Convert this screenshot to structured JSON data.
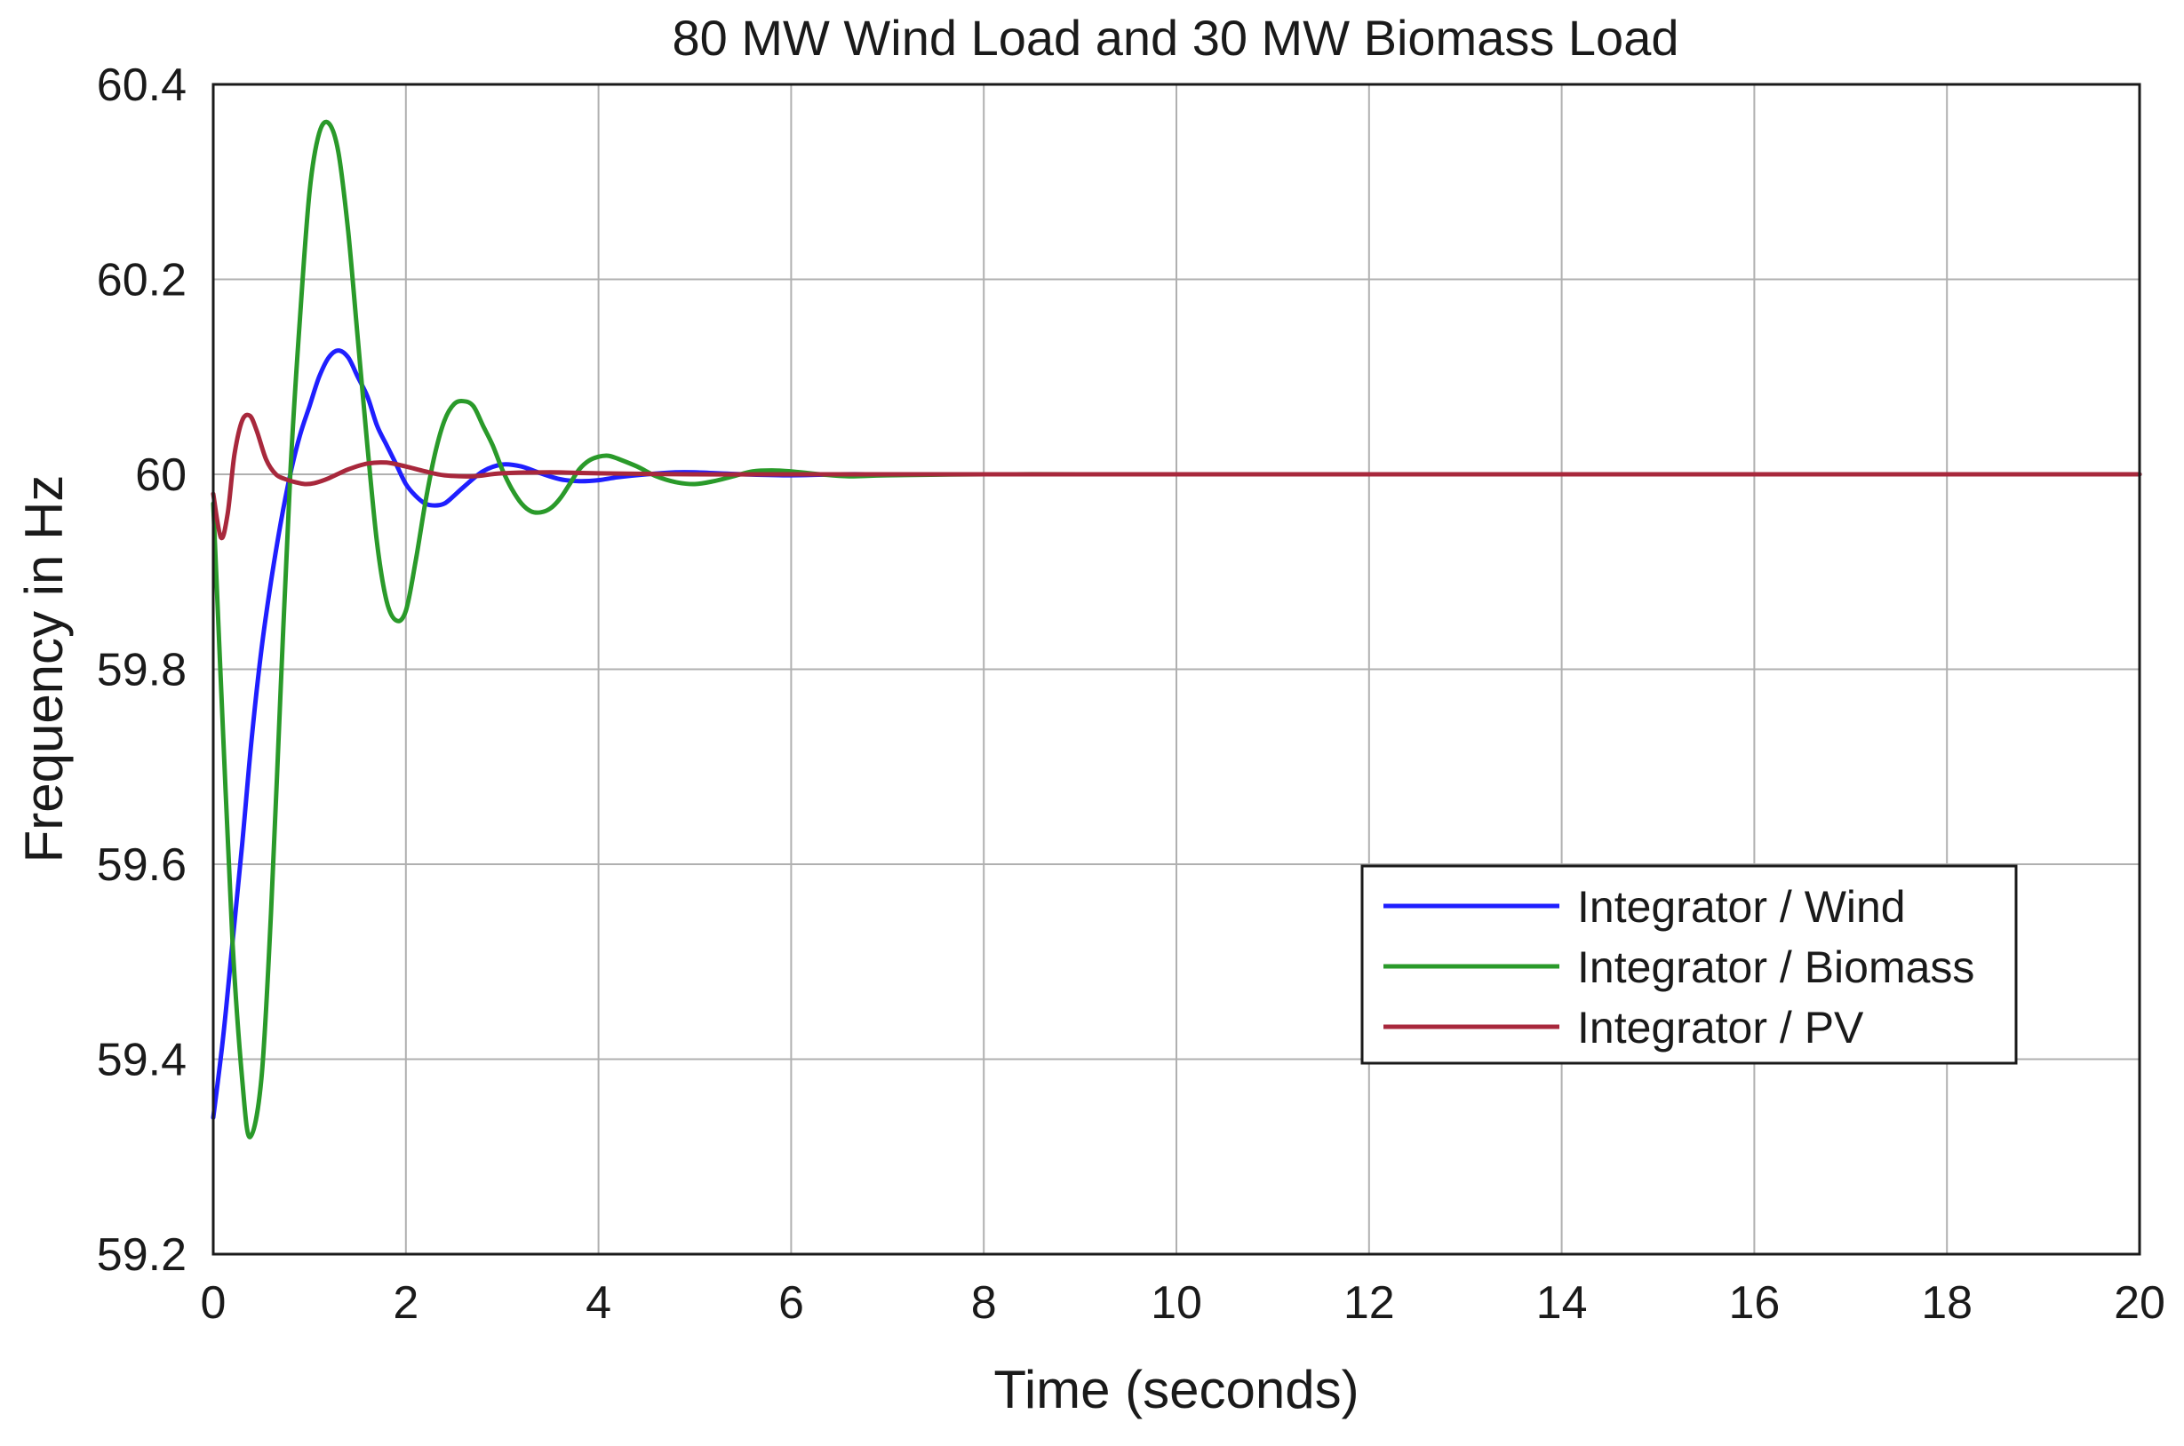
{
  "chart_data": {
    "type": "line",
    "title": "80 MW Wind Load and 30 MW Biomass Load",
    "xlabel": "Time (seconds)",
    "ylabel": "Frequency in Hz",
    "xlim": [
      0,
      20
    ],
    "ylim": [
      59.2,
      60.4
    ],
    "xticks": [
      0,
      2,
      4,
      6,
      8,
      10,
      12,
      14,
      16,
      18,
      20
    ],
    "yticks": [
      59.2,
      59.4,
      59.6,
      59.8,
      60,
      60.2,
      60.4
    ],
    "xtick_labels": [
      "0",
      "2",
      "4",
      "6",
      "8",
      "10",
      "12",
      "14",
      "16",
      "18",
      "20"
    ],
    "ytick_labels": [
      "59.2",
      "59.4",
      "59.6",
      "59.8",
      "60",
      "60.2",
      "60.4"
    ],
    "grid": true,
    "legend_position": "bottom-right",
    "series": [
      {
        "name": "Integrator / Wind",
        "color": "#1f1fff",
        "x": [
          0,
          0.1,
          0.2,
          0.3,
          0.4,
          0.5,
          0.6,
          0.7,
          0.8,
          0.9,
          1.0,
          1.1,
          1.2,
          1.3,
          1.4,
          1.5,
          1.6,
          1.7,
          1.8,
          1.9,
          2.0,
          2.1,
          2.2,
          2.3,
          2.4,
          2.5,
          2.6,
          2.8,
          3.0,
          3.2,
          3.4,
          3.6,
          3.8,
          4.0,
          4.2,
          4.5,
          4.8,
          5.0,
          5.5,
          6.0,
          6.5,
          7.0,
          8.0,
          9.0,
          10.0,
          11.0,
          12.0,
          14.0,
          16.0,
          18.0,
          20.0
        ],
        "y": [
          59.34,
          59.42,
          59.52,
          59.62,
          59.73,
          59.82,
          59.89,
          59.95,
          60.0,
          60.04,
          60.07,
          60.1,
          60.12,
          60.127,
          60.12,
          60.1,
          60.08,
          60.05,
          60.03,
          60.01,
          59.99,
          59.978,
          59.97,
          59.968,
          59.97,
          59.978,
          59.987,
          60.003,
          60.01,
          60.008,
          60.001,
          59.995,
          59.993,
          59.994,
          59.997,
          60.0,
          60.002,
          60.002,
          60.0,
          59.999,
          60.0,
          60.0,
          60.0,
          60.0,
          60.0,
          60.0,
          60.0,
          60.0,
          60.0,
          60.0,
          60.0
        ]
      },
      {
        "name": "Integrator / Biomass",
        "color": "#2a9a2a",
        "x": [
          0,
          0.1,
          0.2,
          0.3,
          0.38,
          0.5,
          0.6,
          0.7,
          0.8,
          0.9,
          1.0,
          1.1,
          1.2,
          1.3,
          1.4,
          1.5,
          1.6,
          1.7,
          1.8,
          1.9,
          2.0,
          2.1,
          2.2,
          2.3,
          2.4,
          2.5,
          2.6,
          2.7,
          2.8,
          2.9,
          3.0,
          3.1,
          3.2,
          3.3,
          3.4,
          3.5,
          3.6,
          3.7,
          3.8,
          3.9,
          4.0,
          4.1,
          4.2,
          4.4,
          4.6,
          4.8,
          5.0,
          5.2,
          5.4,
          5.6,
          5.8,
          6.0,
          6.3,
          6.6,
          7.0,
          8.0,
          9.0,
          10.0,
          12.0,
          14.0,
          16.0,
          18.0,
          20.0
        ],
        "y": [
          59.97,
          59.74,
          59.52,
          59.38,
          59.32,
          59.38,
          59.55,
          59.78,
          60.0,
          60.16,
          60.29,
          60.35,
          60.36,
          60.33,
          60.25,
          60.14,
          60.03,
          59.93,
          59.87,
          59.85,
          59.86,
          59.91,
          59.97,
          60.02,
          60.055,
          60.072,
          60.075,
          60.07,
          60.05,
          60.03,
          60.005,
          59.985,
          59.97,
          59.962,
          59.961,
          59.965,
          59.975,
          59.99,
          60.005,
          60.014,
          60.018,
          60.019,
          60.016,
          60.008,
          59.998,
          59.992,
          59.99,
          59.993,
          59.998,
          60.003,
          60.004,
          60.003,
          60.0,
          59.998,
          59.999,
          60.0,
          60.0,
          60.0,
          60.0,
          60.0,
          60.0,
          60.0,
          60.0
        ]
      },
      {
        "name": "Integrator / PV",
        "color": "#a8283c",
        "x": [
          0,
          0.08,
          0.15,
          0.22,
          0.3,
          0.38,
          0.45,
          0.55,
          0.65,
          0.75,
          0.85,
          0.95,
          1.05,
          1.2,
          1.4,
          1.6,
          1.8,
          2.0,
          2.2,
          2.4,
          2.7,
          3.0,
          3.5,
          4.0,
          5.0,
          6.0,
          8.0,
          10.0,
          12.0,
          14.0,
          16.0,
          18.0,
          20.0
        ],
        "y": [
          59.98,
          59.935,
          59.96,
          60.02,
          60.055,
          60.06,
          60.045,
          60.015,
          60.0,
          59.995,
          59.992,
          59.99,
          59.991,
          59.996,
          60.005,
          60.011,
          60.012,
          60.008,
          60.003,
          59.999,
          59.998,
          60.001,
          60.002,
          60.001,
          60.0,
          60.0,
          60.0,
          60.0,
          60.0,
          60.0,
          60.0,
          60.0,
          60.0
        ]
      }
    ]
  }
}
